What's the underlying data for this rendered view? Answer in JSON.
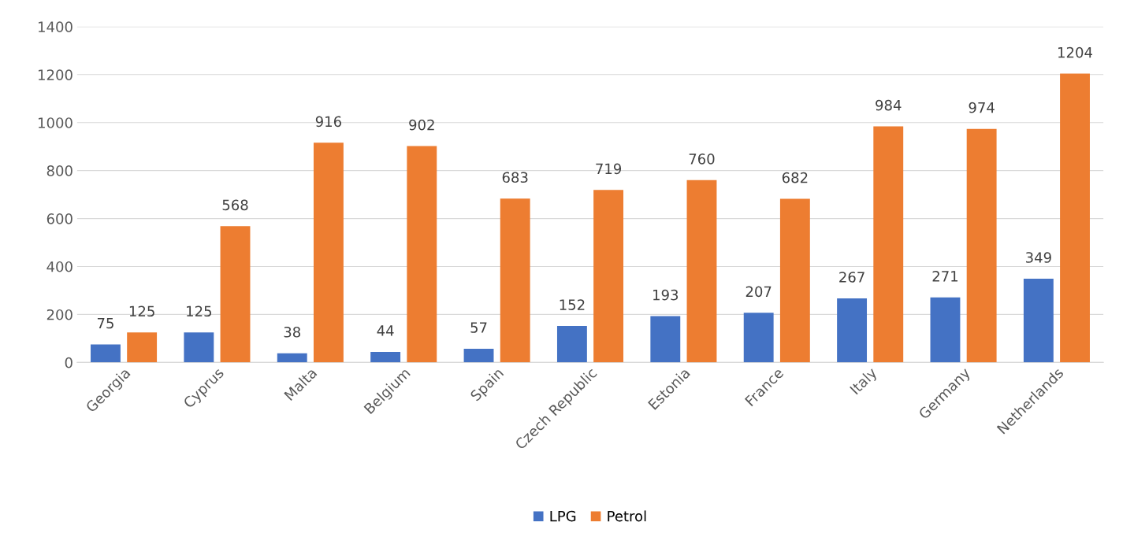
{
  "chart_data": {
    "type": "bar",
    "categories": [
      "Georgia",
      "Cyprus",
      "Malta",
      "Belgium",
      "Spain",
      "Czech Republic",
      "Estonia",
      "France",
      "Italy",
      "Germany",
      "Netherlands"
    ],
    "series": [
      {
        "name": "LPG",
        "color": "#4472c4",
        "values": [
          75,
          125,
          38,
          44,
          57,
          152,
          193,
          207,
          267,
          271,
          349
        ]
      },
      {
        "name": "Petrol",
        "color": "#ed7d31",
        "values": [
          125,
          568,
          916,
          902,
          683,
          719,
          760,
          682,
          984,
          974,
          1204
        ]
      }
    ],
    "ylim": [
      0,
      1400
    ],
    "yticks": [
      0,
      200,
      400,
      600,
      800,
      1000,
      1200,
      1400
    ],
    "grid": "y",
    "legend": "bottom",
    "data_labels": true
  }
}
